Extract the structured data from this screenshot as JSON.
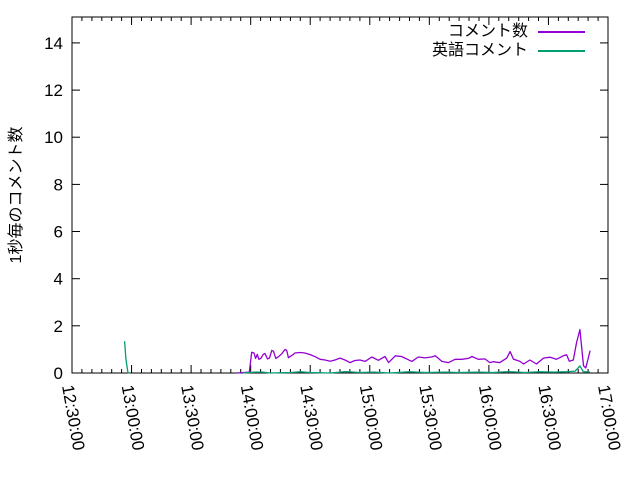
{
  "chart_data": {
    "type": "line",
    "title": "",
    "xlabel": "",
    "ylabel": "1秒毎のコメント数",
    "background": "#ffffff",
    "border_color": "#000000",
    "grid": false,
    "legend": {
      "position": "top-right"
    },
    "x_axis": {
      "range": [
        "12:30:00",
        "17:00:00"
      ],
      "ticks": [
        "12:30:00",
        "13:00:00",
        "13:30:00",
        "14:00:00",
        "14:30:00",
        "15:00:00",
        "15:30:00",
        "16:00:00",
        "16:30:00",
        "17:00:00"
      ],
      "minor_tick_interval_seconds": 300,
      "label_rotation_deg": 80
    },
    "y_axis": {
      "range": [
        0,
        15.1
      ],
      "ticks": [
        0,
        2,
        4,
        6,
        8,
        10,
        12,
        14
      ]
    },
    "series": [
      {
        "name": "コメント数",
        "color": "#9400d3",
        "segments": [
          [
            [
              "13:53:00",
              0
            ],
            [
              "13:59:20",
              0.04
            ],
            [
              "14:00:30",
              0.88
            ],
            [
              "14:01:40",
              0.85
            ],
            [
              "14:02:30",
              0.62
            ],
            [
              "14:03:20",
              0.79
            ],
            [
              "14:04:10",
              0.58
            ],
            [
              "14:05:10",
              0.62
            ],
            [
              "14:06:20",
              0.79
            ],
            [
              "14:07:10",
              0.83
            ],
            [
              "14:08:30",
              0.6
            ],
            [
              "14:09:30",
              0.64
            ],
            [
              "14:10:40",
              0.96
            ],
            [
              "14:11:30",
              0.92
            ],
            [
              "14:12:40",
              0.62
            ],
            [
              "14:14:00",
              0.69
            ],
            [
              "14:15:40",
              0.82
            ],
            [
              "14:17:20",
              1.0
            ],
            [
              "14:18:10",
              0.96
            ],
            [
              "14:19:00",
              0.65
            ],
            [
              "14:20:40",
              0.74
            ],
            [
              "14:22:20",
              0.85
            ],
            [
              "14:24:50",
              0.87
            ],
            [
              "14:27:20",
              0.85
            ],
            [
              "14:30:00",
              0.78
            ],
            [
              "14:32:30",
              0.69
            ],
            [
              "14:35:00",
              0.58
            ],
            [
              "14:37:30",
              0.55
            ],
            [
              "14:40:00",
              0.5
            ],
            [
              "14:42:30",
              0.55
            ],
            [
              "14:45:00",
              0.63
            ],
            [
              "14:47:30",
              0.55
            ],
            [
              "14:50:00",
              0.44
            ],
            [
              "14:52:30",
              0.53
            ],
            [
              "14:55:00",
              0.55
            ],
            [
              "14:57:40",
              0.49
            ],
            [
              "15:01:00",
              0.68
            ],
            [
              "15:04:20",
              0.54
            ],
            [
              "15:07:40",
              0.7
            ],
            [
              "15:09:30",
              0.44
            ],
            [
              "15:12:50",
              0.73
            ],
            [
              "15:16:00",
              0.7
            ],
            [
              "15:19:30",
              0.56
            ],
            [
              "15:21:10",
              0.49
            ],
            [
              "15:24:30",
              0.68
            ],
            [
              "15:27:50",
              0.64
            ],
            [
              "15:31:10",
              0.68
            ],
            [
              "15:33:00",
              0.73
            ],
            [
              "15:36:20",
              0.49
            ],
            [
              "15:39:40",
              0.44
            ],
            [
              "15:43:00",
              0.58
            ],
            [
              "15:46:20",
              0.58
            ],
            [
              "15:49:40",
              0.62
            ],
            [
              "15:51:30",
              0.7
            ],
            [
              "15:54:40",
              0.58
            ],
            [
              "15:58:00",
              0.6
            ],
            [
              "16:00:30",
              0.44
            ],
            [
              "16:02:10",
              0.48
            ],
            [
              "16:05:30",
              0.44
            ],
            [
              "16:09:00",
              0.63
            ],
            [
              "16:10:40",
              0.91
            ],
            [
              "16:12:20",
              0.59
            ],
            [
              "16:15:40",
              0.49
            ],
            [
              "16:17:30",
              0.38
            ],
            [
              "16:20:40",
              0.55
            ],
            [
              "16:24:00",
              0.38
            ],
            [
              "16:27:30",
              0.63
            ],
            [
              "16:30:50",
              0.67
            ],
            [
              "16:34:00",
              0.58
            ],
            [
              "16:37:30",
              0.73
            ],
            [
              "16:39:10",
              0.77
            ],
            [
              "16:40:30",
              0.5
            ],
            [
              "16:42:30",
              0.55
            ],
            [
              "16:44:10",
              1.3
            ],
            [
              "16:45:50",
              1.84
            ],
            [
              "16:47:40",
              0.31
            ],
            [
              "16:48:50",
              0.21
            ],
            [
              "16:51:00",
              0.95
            ]
          ]
        ]
      },
      {
        "name": "英語コメント",
        "color": "#009e73",
        "segments": [
          [
            [
              "12:56:30",
              1.35
            ],
            [
              "12:57:10",
              0.6
            ],
            [
              "12:58:10",
              0.02
            ],
            [
              "12:59:10",
              0
            ]
          ],
          [
            [
              "13:56:00",
              0
            ],
            [
              "14:02:00",
              0.04
            ],
            [
              "14:06:00",
              0.04
            ],
            [
              "14:10:00",
              0
            ],
            [
              "14:20:00",
              0.02
            ],
            [
              "14:25:00",
              0.05
            ],
            [
              "14:30:00",
              0.02
            ],
            [
              "14:40:00",
              0
            ],
            [
              "14:48:00",
              0.06
            ],
            [
              "14:55:00",
              0.02
            ],
            [
              "15:02:00",
              0.04
            ],
            [
              "15:10:00",
              0
            ],
            [
              "15:20:00",
              0.05
            ],
            [
              "15:28:00",
              0.02
            ],
            [
              "15:38:00",
              0.04
            ],
            [
              "15:45:00",
              0.02
            ],
            [
              "15:55:00",
              0.04
            ],
            [
              "16:02:00",
              0.02
            ],
            [
              "16:10:00",
              0.06
            ],
            [
              "16:18:00",
              0.02
            ],
            [
              "16:26:00",
              0.05
            ],
            [
              "16:33:00",
              0.04
            ],
            [
              "16:40:00",
              0.06
            ],
            [
              "16:43:30",
              0.08
            ],
            [
              "16:45:50",
              0.3
            ],
            [
              "16:47:30",
              0.06
            ],
            [
              "16:51:00",
              0.04
            ]
          ]
        ]
      }
    ]
  }
}
